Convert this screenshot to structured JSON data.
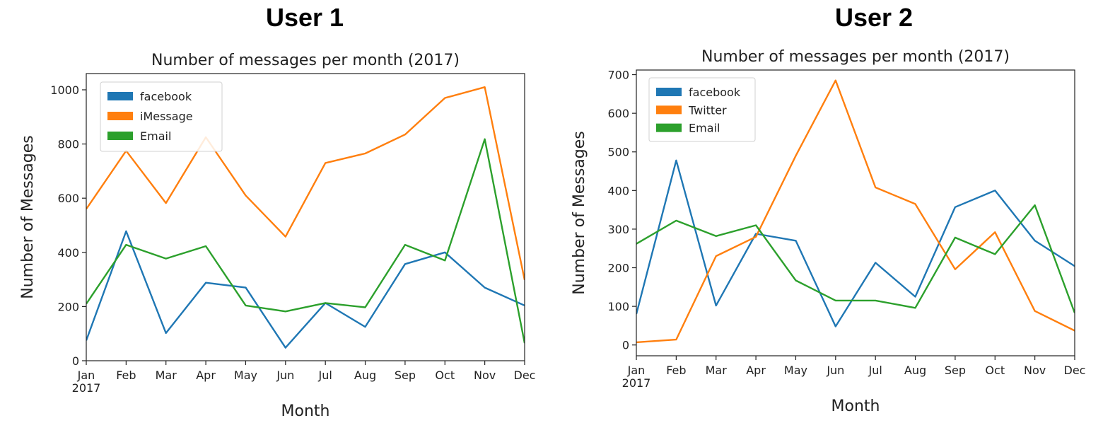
{
  "panels": [
    {
      "heading": "User 1"
    },
    {
      "heading": "User 2"
    }
  ],
  "chart_data": [
    {
      "type": "line",
      "title": "Number of messages per month (2017)",
      "xlabel": "Month",
      "ylabel": "Number of Messages",
      "categories": [
        "Jan",
        "Feb",
        "Mar",
        "Apr",
        "May",
        "Jun",
        "Jul",
        "Aug",
        "Sep",
        "Oct",
        "Nov",
        "Dec"
      ],
      "year_label": "2017",
      "ylim": [
        0,
        1060
      ],
      "yticks": [
        0,
        200,
        400,
        600,
        800,
        1000
      ],
      "legend_position": "upper-left",
      "grid": false,
      "series": [
        {
          "name": "facebook",
          "color": "#1f77b4",
          "values": [
            75,
            478,
            102,
            288,
            270,
            48,
            213,
            125,
            357,
            400,
            270,
            204
          ]
        },
        {
          "name": "iMessage",
          "color": "#ff7f0e",
          "values": [
            560,
            775,
            582,
            825,
            610,
            458,
            730,
            765,
            835,
            970,
            1010,
            298
          ]
        },
        {
          "name": "Email",
          "color": "#2ca02c",
          "values": [
            210,
            428,
            377,
            423,
            204,
            182,
            213,
            197,
            428,
            370,
            818,
            65
          ]
        }
      ]
    },
    {
      "type": "line",
      "title": "Number of messages per month (2017)",
      "xlabel": "Month",
      "ylabel": "Number of Messages",
      "categories": [
        "Jan",
        "Feb",
        "Mar",
        "Apr",
        "May",
        "Jun",
        "Jul",
        "Aug",
        "Sep",
        "Oct",
        "Nov",
        "Dec"
      ],
      "year_label": "2017",
      "ylim": [
        -28,
        712
      ],
      "yticks": [
        0,
        100,
        200,
        300,
        400,
        500,
        600,
        700
      ],
      "legend_position": "upper-left",
      "grid": false,
      "series": [
        {
          "name": "facebook",
          "color": "#1f77b4",
          "values": [
            80,
            478,
            102,
            288,
            270,
            48,
            213,
            125,
            357,
            400,
            270,
            204
          ]
        },
        {
          "name": "Twitter",
          "color": "#ff7f0e",
          "values": [
            7,
            14,
            230,
            280,
            490,
            685,
            408,
            365,
            196,
            292,
            88,
            37
          ]
        },
        {
          "name": "Email",
          "color": "#2ca02c",
          "values": [
            262,
            322,
            282,
            310,
            167,
            115,
            115,
            96,
            278,
            235,
            362,
            83
          ]
        }
      ]
    }
  ]
}
